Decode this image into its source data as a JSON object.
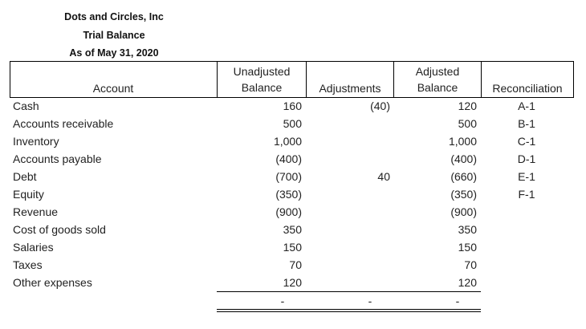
{
  "header": {
    "company": "Dots and Circles, Inc",
    "report": "Trial Balance",
    "date": "As of May 31, 2020"
  },
  "columns": {
    "account": "Account",
    "unadjusted_line1": "Unadjusted",
    "unadjusted_line2": "Balance",
    "adjustments": "Adjustments",
    "adjusted_line1": "Adjusted",
    "adjusted_line2": "Balance",
    "reconciliation": "Reconciliation"
  },
  "rows": [
    {
      "account": "Cash",
      "unadjusted": "160",
      "adjustment": "(40)",
      "adjusted": "120",
      "recon": "A-1"
    },
    {
      "account": "Accounts receivable",
      "unadjusted": "500",
      "adjustment": "",
      "adjusted": "500",
      "recon": "B-1"
    },
    {
      "account": "Inventory",
      "unadjusted": "1,000",
      "adjustment": "",
      "adjusted": "1,000",
      "recon": "C-1"
    },
    {
      "account": "Accounts payable",
      "unadjusted": "(400)",
      "adjustment": "",
      "adjusted": "(400)",
      "recon": "D-1"
    },
    {
      "account": "Debt",
      "unadjusted": "(700)",
      "adjustment": "40",
      "adjusted": "(660)",
      "recon": "E-1"
    },
    {
      "account": "Equity",
      "unadjusted": "(350)",
      "adjustment": "",
      "adjusted": "(350)",
      "recon": "F-1"
    },
    {
      "account": "Revenue",
      "unadjusted": "(900)",
      "adjustment": "",
      "adjusted": "(900)",
      "recon": ""
    },
    {
      "account": "Cost of goods sold",
      "unadjusted": "350",
      "adjustment": "",
      "adjusted": "350",
      "recon": ""
    },
    {
      "account": "Salaries",
      "unadjusted": "150",
      "adjustment": "",
      "adjusted": "150",
      "recon": ""
    },
    {
      "account": "Taxes",
      "unadjusted": "70",
      "adjustment": "",
      "adjusted": "70",
      "recon": ""
    },
    {
      "account": "Other expenses",
      "unadjusted": "120",
      "adjustment": "",
      "adjusted": "120",
      "recon": ""
    }
  ],
  "totals": {
    "unadjusted": "-",
    "adjustments": "-",
    "adjusted": "-"
  }
}
